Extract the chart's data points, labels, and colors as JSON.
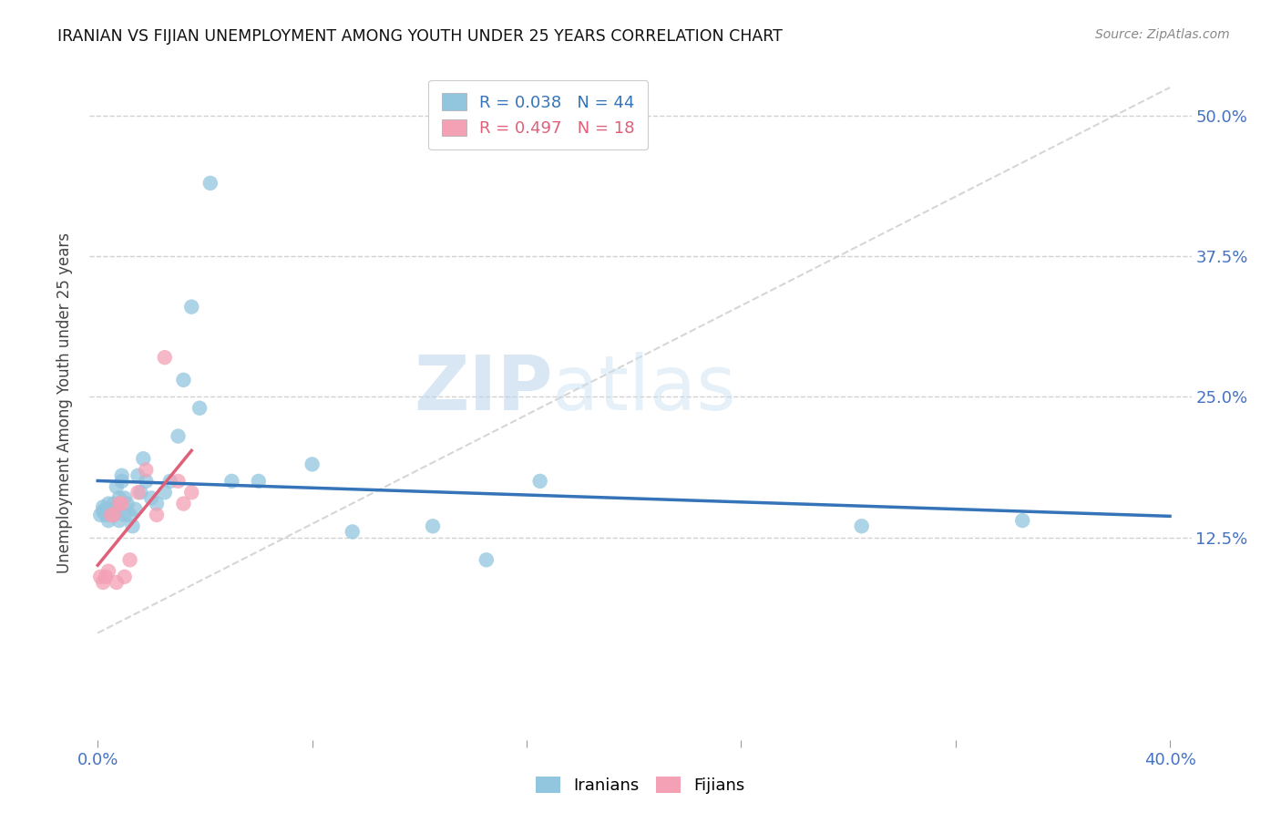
{
  "title": "IRANIAN VS FIJIAN UNEMPLOYMENT AMONG YOUTH UNDER 25 YEARS CORRELATION CHART",
  "source": "Source: ZipAtlas.com",
  "ylabel": "Unemployment Among Youth under 25 years",
  "xlim": [
    -0.003,
    0.408
  ],
  "ylim": [
    -0.055,
    0.545
  ],
  "xtick_positions": [
    0.0,
    0.08,
    0.16,
    0.24,
    0.32,
    0.4
  ],
  "xtick_labels": [
    "0.0%",
    "",
    "",
    "",
    "",
    "40.0%"
  ],
  "ytick_values": [
    0.125,
    0.25,
    0.375,
    0.5
  ],
  "ytick_labels": [
    "12.5%",
    "25.0%",
    "37.5%",
    "50.0%"
  ],
  "iranian_color": "#92c5de",
  "fijian_color": "#f4a0b5",
  "iranian_line_color": "#3574b8",
  "fijian_line_color": "#e0607a",
  "grid_color": "#cccccc",
  "watermark_color": "#cce0f5",
  "iranians_x": [
    0.001,
    0.002,
    0.002,
    0.003,
    0.003,
    0.004,
    0.004,
    0.005,
    0.006,
    0.006,
    0.007,
    0.007,
    0.008,
    0.008,
    0.009,
    0.009,
    0.01,
    0.01,
    0.011,
    0.012,
    0.013,
    0.014,
    0.015,
    0.016,
    0.017,
    0.018,
    0.02,
    0.022,
    0.025,
    0.027,
    0.03,
    0.032,
    0.035,
    0.038,
    0.042,
    0.05,
    0.06,
    0.08,
    0.095,
    0.125,
    0.145,
    0.165,
    0.285,
    0.345
  ],
  "iranians_y": [
    0.145,
    0.148,
    0.152,
    0.145,
    0.15,
    0.14,
    0.155,
    0.15,
    0.145,
    0.155,
    0.15,
    0.17,
    0.14,
    0.16,
    0.175,
    0.18,
    0.145,
    0.16,
    0.155,
    0.145,
    0.135,
    0.15,
    0.18,
    0.165,
    0.195,
    0.175,
    0.16,
    0.155,
    0.165,
    0.175,
    0.215,
    0.265,
    0.33,
    0.24,
    0.44,
    0.175,
    0.175,
    0.19,
    0.13,
    0.135,
    0.105,
    0.175,
    0.135,
    0.14
  ],
  "fijians_x": [
    0.001,
    0.002,
    0.003,
    0.004,
    0.005,
    0.006,
    0.007,
    0.008,
    0.009,
    0.01,
    0.012,
    0.015,
    0.018,
    0.022,
    0.025,
    0.03,
    0.032,
    0.035
  ],
  "fijians_y": [
    0.09,
    0.085,
    0.09,
    0.095,
    0.145,
    0.145,
    0.085,
    0.155,
    0.155,
    0.09,
    0.105,
    0.165,
    0.185,
    0.145,
    0.285,
    0.175,
    0.155,
    0.165
  ],
  "diag_line_x": [
    0.0,
    0.4
  ],
  "diag_line_y": [
    0.04,
    0.525
  ],
  "iranian_trend_x": [
    0.0,
    0.4
  ],
  "iranian_trend_y": [
    0.163,
    0.185
  ],
  "fijian_trend_x": [
    0.0,
    0.035
  ],
  "fijian_trend_y": [
    0.09,
    0.24
  ]
}
